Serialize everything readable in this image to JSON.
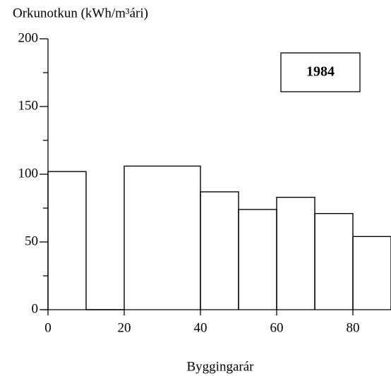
{
  "chart_data": {
    "type": "histogram",
    "title": "Orkunotkun  (kWh/m³ári)",
    "xlabel": "Byggingarár",
    "annotation": "1984",
    "bins": [
      0,
      10,
      20,
      40,
      50,
      60,
      70,
      80,
      90
    ],
    "counts": [
      102,
      0,
      106,
      87,
      74,
      83,
      71,
      54
    ],
    "color": "#000000",
    "xlim": [
      0,
      90
    ],
    "xticks": [
      0,
      20,
      40,
      60,
      80
    ],
    "ylim": [
      0,
      200
    ],
    "yticks": [
      0,
      50,
      100,
      150,
      200
    ],
    "yminorticks": [
      25,
      75,
      125,
      175
    ],
    "grid": false
  }
}
